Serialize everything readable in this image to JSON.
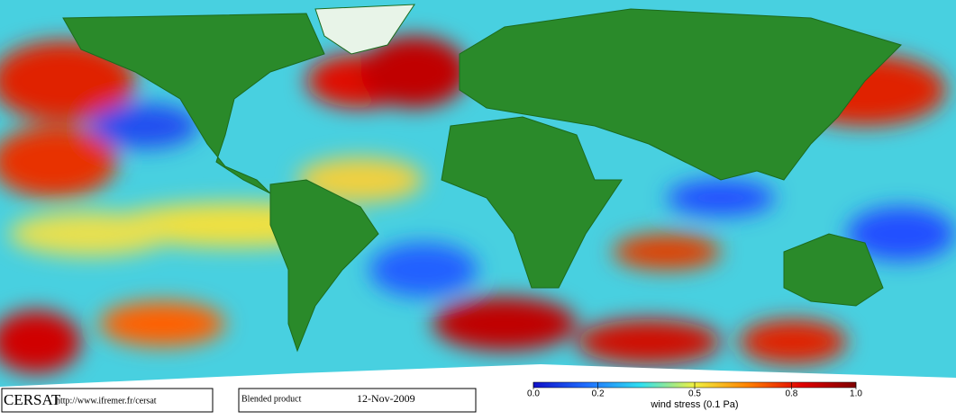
{
  "footer": {
    "logo": "CERSAT",
    "url": "http://www.ifremer.fr/cersat",
    "product": "Blended product",
    "date": "12-Nov-2009"
  },
  "colorbar": {
    "label": "wind stress (0.1 Pa)",
    "lim": [
      0,
      1
    ],
    "ticks": [
      {
        "value": 0,
        "label": "0.0"
      },
      0.2,
      0.5,
      0.8,
      {
        "value": 1,
        "label": "1.0"
      }
    ],
    "colors": [
      "#1010c8",
      "#2070ff",
      "#30e0f0",
      "#f0f040",
      "#ff8000",
      "#e00000",
      "#800000"
    ]
  }
}
